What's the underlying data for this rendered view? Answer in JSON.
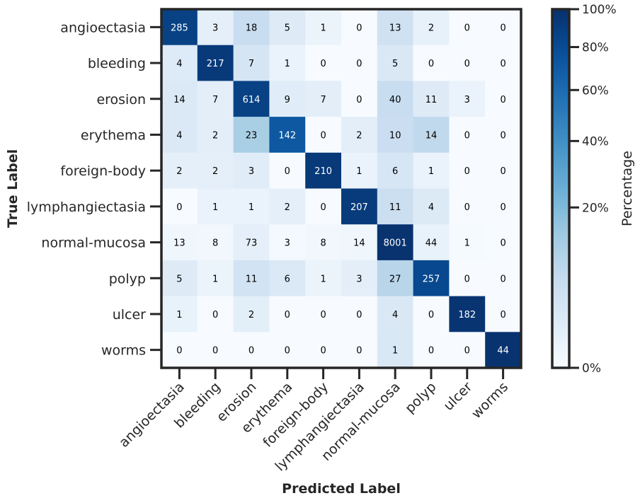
{
  "chart_data": {
    "type": "heatmap",
    "title": "",
    "xlabel": "Predicted Label",
    "ylabel": "True Label",
    "labels": [
      "angioectasia",
      "bleeding",
      "erosion",
      "erythema",
      "foreign-body",
      "lymphangiectasia",
      "normal-mucosa",
      "polyp",
      "ulcer",
      "worms"
    ],
    "matrix": [
      [
        285,
        3,
        18,
        5,
        1,
        0,
        13,
        2,
        0,
        0
      ],
      [
        4,
        217,
        7,
        1,
        0,
        0,
        5,
        0,
        0,
        0
      ],
      [
        14,
        7,
        614,
        9,
        7,
        0,
        40,
        11,
        3,
        0
      ],
      [
        4,
        2,
        23,
        142,
        0,
        2,
        10,
        14,
        0,
        0
      ],
      [
        2,
        2,
        3,
        0,
        210,
        1,
        6,
        1,
        0,
        0
      ],
      [
        0,
        1,
        1,
        2,
        0,
        207,
        11,
        4,
        0,
        0
      ],
      [
        13,
        8,
        73,
        3,
        8,
        14,
        8001,
        44,
        1,
        0
      ],
      [
        5,
        1,
        11,
        6,
        1,
        3,
        27,
        257,
        0,
        0
      ],
      [
        1,
        0,
        2,
        0,
        0,
        0,
        4,
        0,
        182,
        0
      ],
      [
        0,
        0,
        0,
        0,
        0,
        0,
        1,
        0,
        0,
        44
      ]
    ],
    "color_scale": {
      "title": "Percentage",
      "ticks": [
        "0%",
        "20%",
        "40%",
        "60%",
        "80%",
        "100%"
      ],
      "tick_values": [
        0,
        20,
        40,
        60,
        80,
        100
      ],
      "scale": "power",
      "colormap": "Blues",
      "low_color": "#f7fbff",
      "high_color": "#08306b"
    },
    "grid": false
  }
}
